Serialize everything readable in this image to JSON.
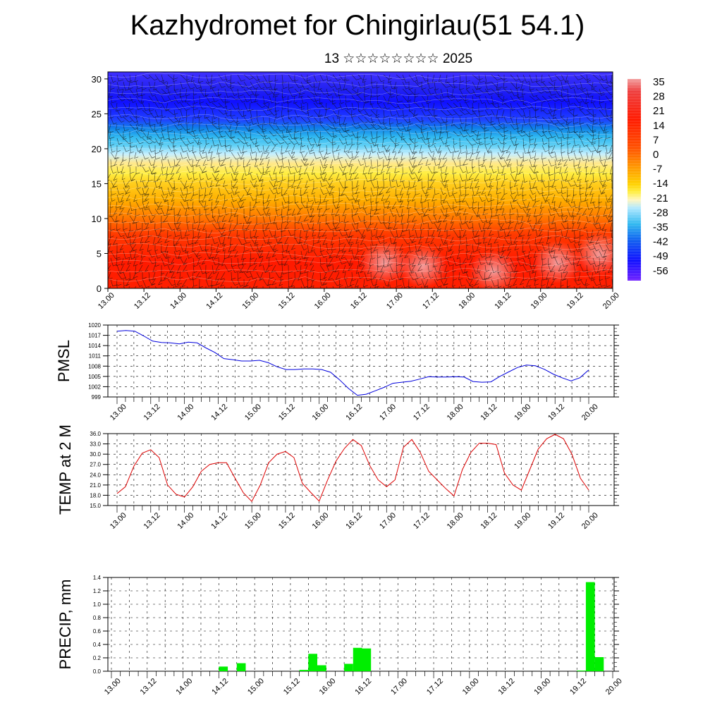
{
  "header": {
    "title": "Kazhydromet for Chingirlau(51 54.1)",
    "subtitle": "13 ☆☆☆☆☆☆☆☆ 2025"
  },
  "chart_data": [
    {
      "type": "heatmap",
      "name": "temperature-cross-section",
      "title": "",
      "xlabel": "",
      "ylabel": "",
      "x_ticks": [
        "13.00",
        "13.12",
        "14.00",
        "14.12",
        "15.00",
        "15.12",
        "16.00",
        "16.12",
        "17.00",
        "17.12",
        "18.00",
        "18.12",
        "19.00",
        "19.12",
        "20.00"
      ],
      "y_ticks": [
        0,
        5,
        10,
        15,
        20,
        25,
        30
      ],
      "ylim": [
        0,
        31
      ],
      "colorbar_labels": [
        "35",
        "28",
        "21",
        "14",
        "7",
        "0",
        "-7",
        "-14",
        "-21",
        "-28",
        "-35",
        "-42",
        "-49",
        "-56"
      ],
      "colors": {
        "warm": "#ff1a00",
        "hot": "#f2a0a0",
        "mid": "#ffee40",
        "cool": "#30b8f0",
        "cold": "#1010ff",
        "coldest": "#7020ff"
      },
      "overlay": "wind-barbs"
    },
    {
      "type": "line",
      "name": "pmsl",
      "ylabel": "PMSL",
      "x_ticks": [
        "13.00",
        "13.12",
        "14.00",
        "14.12",
        "15.00",
        "15.12",
        "16.00",
        "16.12",
        "17.00",
        "17.12",
        "18.00",
        "18.12",
        "19.00",
        "19.12",
        "20.00"
      ],
      "y_ticks": [
        "1020",
        "1017",
        "1014",
        "1011",
        "1008",
        "1005",
        "1002",
        "999"
      ],
      "ylim": [
        999,
        1020
      ],
      "color": "#0000dd",
      "values": [
        1018.2,
        1018.4,
        1018.2,
        1016.8,
        1015.3,
        1014.9,
        1014.8,
        1014.5,
        1015.0,
        1014.8,
        1013.3,
        1012.0,
        1010.2,
        1009.9,
        1009.5,
        1009.5,
        1009.7,
        1009.0,
        1007.8,
        1007.0,
        1007.0,
        1007.2,
        1007.2,
        1007.0,
        1006.2,
        1004.0,
        1001.5,
        999.5,
        999.8,
        1000.8,
        1001.8,
        1003.0,
        1003.3,
        1003.6,
        1004.2,
        1004.9,
        1004.8,
        1004.8,
        1004.9,
        1004.8,
        1003.5,
        1003.3,
        1003.4,
        1005.0,
        1006.3,
        1007.6,
        1008.3,
        1008.1,
        1007.1,
        1005.7,
        1004.6,
        1003.7,
        1004.6,
        1006.9
      ]
    },
    {
      "type": "line",
      "name": "temp-2m",
      "ylabel": "TEMP at 2 M",
      "x_ticks": [
        "13.00",
        "13.12",
        "14.00",
        "14.12",
        "15.00",
        "15.12",
        "16.00",
        "16.12",
        "17.00",
        "17.12",
        "18.00",
        "18.12",
        "19.00",
        "19.12",
        "20.00"
      ],
      "y_ticks": [
        "36.0",
        "33.0",
        "30.0",
        "27.0",
        "24.0",
        "21.0",
        "18.0",
        "15.0"
      ],
      "ylim": [
        15,
        36
      ],
      "color": "#dd0000",
      "values": [
        18.5,
        20.5,
        26.5,
        30.3,
        31.3,
        29.0,
        21.0,
        18.3,
        17.5,
        20.5,
        25.0,
        27.0,
        27.5,
        27.5,
        23.0,
        18.7,
        16.2,
        21.0,
        27.5,
        30.0,
        30.8,
        29.0,
        21.5,
        18.8,
        16.3,
        22.5,
        28.0,
        31.7,
        34.3,
        32.5,
        26.7,
        22.5,
        20.5,
        22.5,
        32.0,
        34.3,
        30.5,
        25.0,
        22.5,
        20.0,
        17.8,
        25.5,
        30.5,
        33.2,
        33.2,
        32.8,
        24.5,
        21.0,
        19.5,
        25.5,
        31.5,
        34.5,
        35.8,
        34.5,
        30.0,
        23.0,
        19.5
      ]
    },
    {
      "type": "bar",
      "name": "precip",
      "ylabel": "PRECIP, mm",
      "x_ticks": [
        "13.00",
        "13.12",
        "14.00",
        "14.12",
        "15.00",
        "15.12",
        "16.00",
        "16.12",
        "17.00",
        "17.12",
        "18.00",
        "18.12",
        "19.00",
        "19.12",
        "20.00"
      ],
      "y_ticks": [
        "1.4",
        "1.2",
        "1.0",
        "0.8",
        "0.6",
        "0.4",
        "0.2",
        "0.0"
      ],
      "ylim": [
        0,
        1.4
      ],
      "color": "#00ee00",
      "bars": [
        {
          "hour": 39,
          "value": 0.07
        },
        {
          "hour": 45,
          "value": 0.12
        },
        {
          "hour": 66,
          "value": 0.02
        },
        {
          "hour": 69,
          "value": 0.26
        },
        {
          "hour": 72,
          "value": 0.09
        },
        {
          "hour": 81,
          "value": 0.11
        },
        {
          "hour": 84,
          "value": 0.35
        },
        {
          "hour": 87,
          "value": 0.34
        },
        {
          "hour": 159,
          "value": 0.01
        },
        {
          "hour": 162,
          "value": 1.33
        },
        {
          "hour": 165,
          "value": 0.21
        }
      ]
    }
  ]
}
